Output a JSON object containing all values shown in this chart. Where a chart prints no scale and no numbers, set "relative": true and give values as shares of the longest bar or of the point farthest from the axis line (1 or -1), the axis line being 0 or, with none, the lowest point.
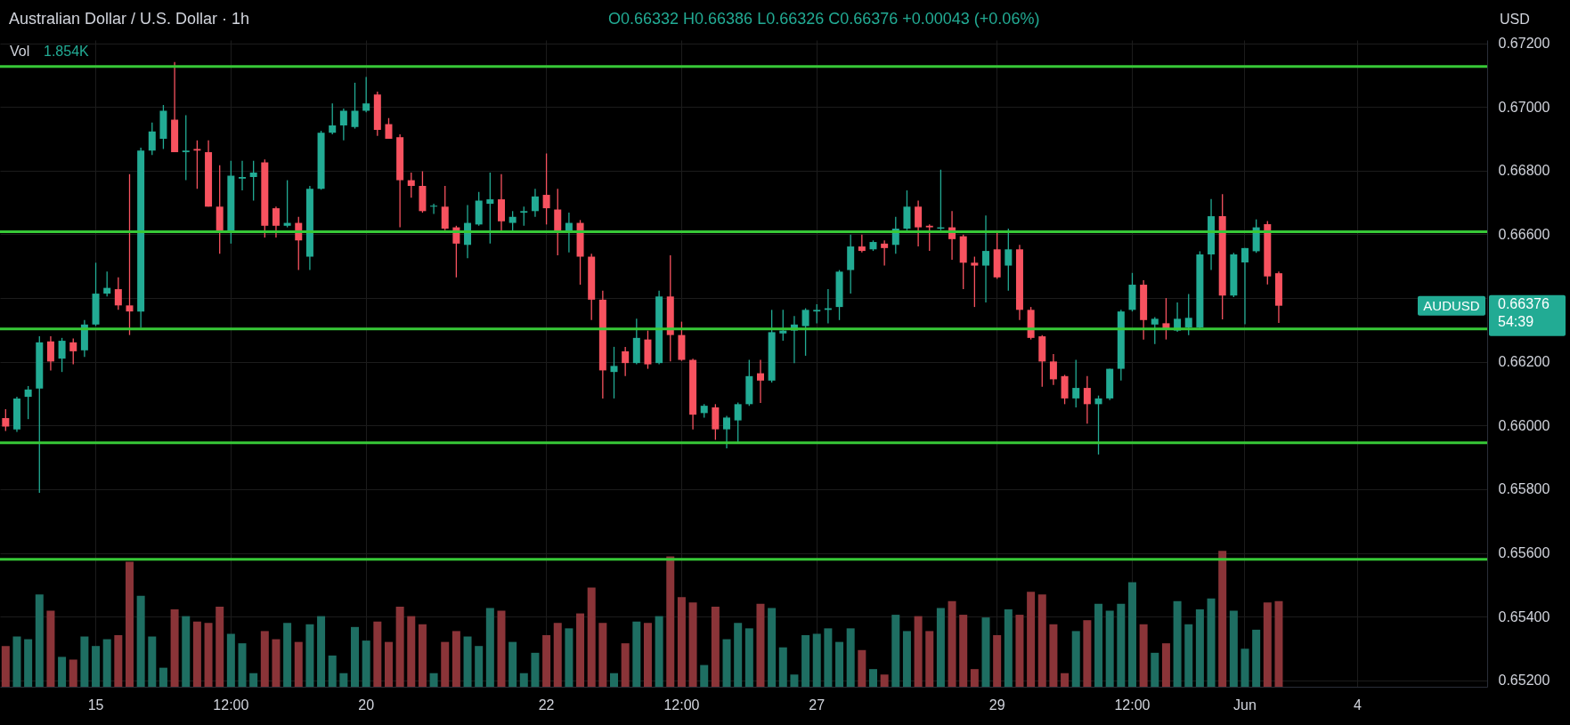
{
  "chart_data": [
    {
      "type": "candlestick",
      "title": "Australian Dollar / U.S. Dollar · 1h",
      "subtitle": "O0.66332 H0.66386 L0.66326 C0.66376 +0.00043 (+0.06%)",
      "categories": [
        null,
        null,
        null,
        null,
        null,
        null,
        null,
        null,
        "15",
        null,
        null,
        null,
        null,
        null,
        null,
        null,
        null,
        null,
        null,
        null,
        "12:00",
        null,
        null,
        null,
        null,
        null,
        null,
        null,
        null,
        null,
        null,
        null,
        "20",
        null,
        null,
        null,
        null,
        null,
        null,
        null,
        null,
        null,
        null,
        null,
        null,
        null,
        null,
        null,
        "22",
        null,
        null,
        null,
        null,
        null,
        null,
        null,
        null,
        null,
        null,
        null,
        "12:00",
        null,
        null,
        null,
        null,
        null,
        null,
        null,
        null,
        null,
        null,
        null,
        "27",
        null,
        null,
        null,
        null,
        null,
        null,
        null,
        null,
        null,
        null,
        null,
        null,
        null,
        null,
        null,
        "29",
        null,
        null,
        null,
        null,
        null,
        null,
        null,
        null,
        null,
        null,
        null,
        "12:00",
        null,
        null,
        null,
        null,
        null,
        null,
        null,
        null,
        null,
        "Jun",
        null,
        null,
        null,
        null,
        null,
        null,
        null,
        null,
        null,
        "4",
        null,
        null,
        null,
        null,
        null,
        null,
        null,
        null,
        null,
        null,
        null
      ],
      "ohlc": [
        [
          0.66023,
          0.66051,
          0.65983,
          0.65997
        ],
        [
          0.65988,
          0.6609,
          0.6598,
          0.66085
        ],
        [
          0.6609,
          0.66124,
          0.6602,
          0.66113
        ],
        [
          0.66116,
          0.6628,
          0.65789,
          0.66261
        ],
        [
          0.66264,
          0.6628,
          0.66173,
          0.66201
        ],
        [
          0.6621,
          0.66275,
          0.66168,
          0.66266
        ],
        [
          0.66261,
          0.66273,
          0.66192,
          0.66233
        ],
        [
          0.66236,
          0.66331,
          0.66215,
          0.66317
        ],
        [
          0.66317,
          0.66511,
          0.66312,
          0.66414
        ],
        [
          0.66414,
          0.66483,
          0.66405,
          0.66432
        ],
        [
          0.66428,
          0.66465,
          0.66363,
          0.66377
        ],
        [
          0.66377,
          0.66789,
          0.66284,
          0.66358
        ],
        [
          0.66358,
          0.66872,
          0.66307,
          0.66863
        ],
        [
          0.66863,
          0.66951,
          0.66849,
          0.66923
        ],
        [
          0.669,
          0.67006,
          0.66868,
          0.66988
        ],
        [
          0.6696,
          0.67141,
          0.66858,
          0.66858
        ],
        [
          0.66858,
          0.66974,
          0.6677,
          0.66863
        ],
        [
          0.66868,
          0.66895,
          0.66743,
          0.66863
        ],
        [
          0.66858,
          0.66895,
          0.66687,
          0.66687
        ],
        [
          0.66687,
          0.66817,
          0.66539,
          0.66604
        ],
        [
          0.66608,
          0.66831,
          0.66571,
          0.66784
        ],
        [
          0.66775,
          0.66831,
          0.66738,
          0.6678
        ],
        [
          0.6678,
          0.66831,
          0.66706,
          0.66794
        ],
        [
          0.66826,
          0.66835,
          0.6659,
          0.66627
        ],
        [
          0.66682,
          0.66687,
          0.6659,
          0.66627
        ],
        [
          0.66627,
          0.6677,
          0.66622,
          0.66636
        ],
        [
          0.66636,
          0.66655,
          0.66488,
          0.66581
        ],
        [
          0.6653,
          0.66752,
          0.66488,
          0.66743
        ],
        [
          0.66743,
          0.66925,
          0.6674,
          0.66919
        ],
        [
          0.66919,
          0.67011,
          0.66914,
          0.66942
        ],
        [
          0.66942,
          0.66995,
          0.66895,
          0.66988
        ],
        [
          0.66937,
          0.67076,
          0.66932,
          0.66988
        ],
        [
          0.66988,
          0.67094,
          0.66983,
          0.67011
        ],
        [
          0.67039,
          0.67048,
          0.66909,
          0.66928
        ],
        [
          0.66946,
          0.66965,
          0.669,
          0.669
        ],
        [
          0.66905,
          0.66914,
          0.66622,
          0.6677
        ],
        [
          0.6677,
          0.66794,
          0.66715,
          0.66752
        ],
        [
          0.66752,
          0.66798,
          0.66668,
          0.66673
        ],
        [
          0.66687,
          0.66696,
          0.66664,
          0.6669
        ],
        [
          0.66687,
          0.66752,
          0.66613,
          0.66618
        ],
        [
          0.66622,
          0.66627,
          0.66465,
          0.66571
        ],
        [
          0.66567,
          0.66692,
          0.66525,
          0.66636
        ],
        [
          0.66631,
          0.66733,
          0.66627,
          0.66706
        ],
        [
          0.66696,
          0.66794,
          0.66571,
          0.6671
        ],
        [
          0.6671,
          0.66789,
          0.66608,
          0.66641
        ],
        [
          0.66636,
          0.66673,
          0.66608,
          0.66655
        ],
        [
          0.66668,
          0.66687,
          0.66627,
          0.66673
        ],
        [
          0.66673,
          0.66743,
          0.66655,
          0.66719
        ],
        [
          0.66724,
          0.66854,
          0.66631,
          0.66682
        ],
        [
          0.66678,
          0.66743,
          0.66534,
          0.66608
        ],
        [
          0.66608,
          0.66668,
          0.66543,
          0.66636
        ],
        [
          0.66636,
          0.66645,
          0.66442,
          0.6653
        ],
        [
          0.6653,
          0.66539,
          0.66331,
          0.66395
        ],
        [
          0.66395,
          0.66423,
          0.66085,
          0.66173
        ],
        [
          0.66168,
          0.66247,
          0.66085,
          0.66187
        ],
        [
          0.66233,
          0.66247,
          0.66155,
          0.66196
        ],
        [
          0.66196,
          0.66335,
          0.66192,
          0.66275
        ],
        [
          0.6627,
          0.66298,
          0.66178,
          0.66192
        ],
        [
          0.66196,
          0.66423,
          0.66192,
          0.66405
        ],
        [
          0.66405,
          0.66534,
          0.66201,
          0.66284
        ],
        [
          0.66284,
          0.66326,
          0.66203,
          0.66206
        ],
        [
          0.66206,
          0.6621,
          0.65988,
          0.66034
        ],
        [
          0.66039,
          0.66067,
          0.66025,
          0.66062
        ],
        [
          0.66057,
          0.66067,
          0.65955,
          0.65988
        ],
        [
          0.65988,
          0.6603,
          0.65928,
          0.66025
        ],
        [
          0.66016,
          0.66072,
          0.65946,
          0.66067
        ],
        [
          0.66067,
          0.66206,
          0.66062,
          0.66155
        ],
        [
          0.66164,
          0.66206,
          0.66071,
          0.66141
        ],
        [
          0.66141,
          0.66363,
          0.66135,
          0.66293
        ],
        [
          0.66289,
          0.66363,
          0.66266,
          0.66298
        ],
        [
          0.66298,
          0.66344,
          0.66196,
          0.66317
        ],
        [
          0.66312,
          0.66368,
          0.66219,
          0.66363
        ],
        [
          0.66358,
          0.66381,
          0.66321,
          0.66363
        ],
        [
          0.66363,
          0.66428,
          0.66321,
          0.66368
        ],
        [
          0.66372,
          0.66488,
          0.66331,
          0.66483
        ],
        [
          0.66488,
          0.66599,
          0.66414,
          0.66562
        ],
        [
          0.66562,
          0.66599,
          0.66543,
          0.66548
        ],
        [
          0.66553,
          0.66581,
          0.66548,
          0.66576
        ],
        [
          0.66571,
          0.66581,
          0.66502,
          0.66557
        ],
        [
          0.66567,
          0.66655,
          0.66539,
          0.66618
        ],
        [
          0.66618,
          0.66738,
          0.66613,
          0.66687
        ],
        [
          0.66687,
          0.66706,
          0.66562,
          0.66622
        ],
        [
          0.66627,
          0.66631,
          0.66548,
          0.66622
        ],
        [
          0.66618,
          0.66803,
          0.66613,
          0.66622
        ],
        [
          0.66622,
          0.66673,
          0.6652,
          0.66585
        ],
        [
          0.66594,
          0.66599,
          0.66428,
          0.66511
        ],
        [
          0.66511,
          0.6653,
          0.66372,
          0.66502
        ],
        [
          0.66502,
          0.66659,
          0.66386,
          0.66548
        ],
        [
          0.66553,
          0.66604,
          0.6646,
          0.66465
        ],
        [
          0.66502,
          0.66618,
          0.66423,
          0.66553
        ],
        [
          0.66553,
          0.66567,
          0.66331,
          0.66363
        ],
        [
          0.66363,
          0.66372,
          0.6627,
          0.66275
        ],
        [
          0.6628,
          0.66284,
          0.66122,
          0.66201
        ],
        [
          0.66201,
          0.66224,
          0.66127,
          0.66145
        ],
        [
          0.66155,
          0.66159,
          0.66067,
          0.66085
        ],
        [
          0.66085,
          0.66206,
          0.66057,
          0.66118
        ],
        [
          0.66118,
          0.66155,
          0.66006,
          0.66067
        ],
        [
          0.66067,
          0.66094,
          0.65909,
          0.66085
        ],
        [
          0.66085,
          0.66178,
          0.6608,
          0.66178
        ],
        [
          0.66178,
          0.66363,
          0.66141,
          0.66358
        ],
        [
          0.66363,
          0.66479,
          0.66358,
          0.66442
        ],
        [
          0.66442,
          0.66456,
          0.6627,
          0.66331
        ],
        [
          0.66317,
          0.6634,
          0.66256,
          0.66335
        ],
        [
          0.66321,
          0.664,
          0.6627,
          0.66303
        ],
        [
          0.66298,
          0.66386,
          0.66294,
          0.66335
        ],
        [
          0.66308,
          0.66413,
          0.66284,
          0.66338
        ],
        [
          0.66308,
          0.66547,
          0.66303,
          0.66537
        ],
        [
          0.66537,
          0.66711,
          0.66488,
          0.66657
        ],
        [
          0.66657,
          0.66726,
          0.66333,
          0.66408
        ],
        [
          0.66408,
          0.66542,
          0.66403,
          0.66537
        ],
        [
          0.66512,
          0.66557,
          0.66318,
          0.66557
        ],
        [
          0.66547,
          0.66647,
          0.66542,
          0.66622
        ],
        [
          0.66632,
          0.66642,
          0.66443,
          0.66468
        ],
        [
          0.66478,
          0.66483,
          0.66322,
          0.66376
        ],
        null,
        null,
        null,
        null,
        null,
        null,
        null,
        null,
        null,
        null,
        null,
        null,
        null,
        null,
        null,
        null,
        null,
        null
      ],
      "colors": [
        "#f7525f",
        "#22ab94",
        "#22ab94",
        "#22ab94",
        "#f7525f",
        "#22ab94",
        "#f7525f",
        "#22ab94",
        "#22ab94",
        "#22ab94",
        "#f7525f",
        "#f7525f",
        "#22ab94",
        "#22ab94",
        "#22ab94",
        "#f7525f",
        "#22ab94",
        "#f7525f",
        "#f7525f",
        "#f7525f",
        "#22ab94",
        "#22ab94",
        "#22ab94",
        "#f7525f",
        "#f7525f",
        "#22ab94",
        "#f7525f",
        "#22ab94",
        "#22ab94",
        "#22ab94",
        "#22ab94",
        "#22ab94",
        "#22ab94",
        "#f7525f",
        "#f7525f",
        "#f7525f",
        "#f7525f",
        "#f7525f",
        "#22ab94",
        "#f7525f",
        "#f7525f",
        "#22ab94",
        "#22ab94",
        "#22ab94",
        "#f7525f",
        "#22ab94",
        "#22ab94",
        "#22ab94",
        "#f7525f",
        "#f7525f",
        "#22ab94",
        "#f7525f",
        "#f7525f",
        "#f7525f",
        "#22ab94",
        "#f7525f",
        "#22ab94",
        "#f7525f",
        "#22ab94",
        "#f7525f",
        "#f7525f",
        "#f7525f",
        "#22ab94",
        "#f7525f",
        "#22ab94",
        "#22ab94",
        "#22ab94",
        "#f7525f",
        "#22ab94",
        "#22ab94",
        "#22ab94",
        "#22ab94",
        "#22ab94",
        "#22ab94",
        "#22ab94",
        "#22ab94",
        "#f7525f",
        "#22ab94",
        "#f7525f",
        "#22ab94",
        "#22ab94",
        "#f7525f",
        "#f7525f",
        "#22ab94",
        "#f7525f",
        "#f7525f",
        "#f7525f",
        "#22ab94",
        "#f7525f",
        "#22ab94",
        "#f7525f",
        "#f7525f",
        "#f7525f",
        "#f7525f",
        "#f7525f",
        "#22ab94",
        "#f7525f",
        "#22ab94",
        "#22ab94",
        "#22ab94",
        "#22ab94",
        "#f7525f",
        "#22ab94",
        "#f7525f",
        "#22ab94",
        "#22ab94",
        "#22ab94",
        "#22ab94",
        "#f7525f",
        "#22ab94",
        "#22ab94",
        "#22ab94",
        "#f7525f",
        "#f7525f",
        null,
        null,
        null,
        null,
        null,
        null,
        null,
        null,
        null,
        null,
        null,
        null,
        null,
        null,
        null,
        null,
        null,
        null
      ],
      "ylim": [
        0.6518,
        0.6721
      ],
      "yticks": [
        {
          "value": 0.652,
          "label": "0.65200"
        },
        {
          "value": 0.654,
          "label": "0.65400"
        },
        {
          "value": 0.656,
          "label": "0.65600"
        },
        {
          "value": 0.658,
          "label": "0.65800"
        },
        {
          "value": 0.66,
          "label": "0.66000"
        },
        {
          "value": 0.662,
          "label": "0.66200"
        },
        {
          "value": 0.664,
          "label": null
        },
        {
          "value": 0.666,
          "label": "0.66600"
        },
        {
          "value": 0.668,
          "label": "0.66800"
        },
        {
          "value": 0.67,
          "label": "0.67000"
        },
        {
          "value": 0.672,
          "label": "0.67200"
        }
      ],
      "grid": true,
      "ref_lines": [
        {
          "axis": "y",
          "value": 0.67127,
          "color": "#37c837"
        },
        {
          "axis": "y",
          "value": 0.66608,
          "color": "#37c837"
        },
        {
          "axis": "y",
          "value": 0.66303,
          "color": "#37c837"
        },
        {
          "axis": "y",
          "value": 0.65946,
          "color": "#37c837"
        },
        {
          "axis": "y",
          "value": 0.6558,
          "color": "#37c837"
        }
      ],
      "annotations": [
        "AUDUSD",
        "0.66376\n54:39",
        "USD"
      ]
    },
    {
      "type": "bar",
      "relative": true,
      "title": "Vol",
      "tick_labels": false,
      "categories": [
        null,
        null,
        null,
        null,
        null,
        null,
        null,
        null,
        null,
        null,
        null,
        null,
        null,
        null,
        null,
        null,
        null,
        null,
        null,
        null,
        null,
        null,
        null,
        null,
        null,
        null,
        null,
        null,
        null,
        null,
        null,
        null,
        null,
        null,
        null,
        null,
        null,
        null,
        null,
        null,
        null,
        null,
        null,
        null,
        null,
        null,
        null,
        null,
        null,
        null,
        null,
        null,
        null,
        null,
        null,
        null,
        null,
        null,
        null,
        null,
        null,
        null,
        null,
        null,
        null,
        null,
        null,
        null,
        null,
        null,
        null,
        null,
        null,
        null,
        null,
        null,
        null,
        null,
        null,
        null,
        null,
        null,
        null,
        null,
        null,
        null,
        null,
        null,
        null,
        null,
        null,
        null,
        null,
        null,
        null,
        null,
        null,
        null,
        null,
        null,
        null,
        null,
        null,
        null,
        null,
        null,
        null,
        null,
        null,
        null,
        null,
        null,
        null,
        null,
        null,
        null,
        null,
        null,
        null,
        null,
        null,
        null,
        null,
        null,
        null,
        null,
        null,
        null,
        null,
        null,
        null,
        null
      ],
      "values": [
        0.3,
        0.37,
        0.35,
        0.68,
        0.56,
        0.22,
        0.2,
        0.37,
        0.3,
        0.35,
        0.38,
        0.92,
        0.67,
        0.37,
        0.14,
        0.57,
        0.52,
        0.48,
        0.47,
        0.59,
        0.39,
        0.32,
        0.1,
        0.41,
        0.35,
        0.47,
        0.33,
        0.46,
        0.52,
        0.23,
        0.1,
        0.44,
        0.34,
        0.48,
        0.33,
        0.59,
        0.52,
        0.46,
        0.1,
        0.33,
        0.41,
        0.37,
        0.3,
        0.58,
        0.56,
        0.33,
        0.1,
        0.25,
        0.38,
        0.47,
        0.43,
        0.54,
        0.73,
        0.47,
        0.1,
        0.32,
        0.48,
        0.47,
        0.52,
        0.96,
        0.66,
        0.62,
        0.16,
        0.59,
        0.35,
        0.47,
        0.43,
        0.61,
        0.58,
        0.29,
        0.09,
        0.38,
        0.39,
        0.43,
        0.33,
        0.43,
        0.27,
        0.13,
        0.09,
        0.53,
        0.41,
        0.52,
        0.41,
        0.58,
        0.63,
        0.53,
        0.13,
        0.51,
        0.38,
        0.57,
        0.53,
        0.7,
        0.68,
        0.46,
        0.1,
        0.41,
        0.49,
        0.61,
        0.56,
        0.61,
        0.77,
        0.46,
        0.25,
        0.32,
        0.63,
        0.46,
        0.57,
        0.65,
        1,
        0.56,
        0.28,
        0.42,
        0.62,
        0.63,
        null,
        null,
        null,
        null,
        null,
        null,
        null,
        null,
        null,
        null,
        null,
        null,
        null,
        null,
        null,
        null,
        null,
        null
      ],
      "colors": [
        "#8a3438",
        "#1e6e62",
        "#1e6e62",
        "#1e6e62",
        "#8a3438",
        "#1e6e62",
        "#8a3438",
        "#1e6e62",
        "#1e6e62",
        "#1e6e62",
        "#8a3438",
        "#8a3438",
        "#1e6e62",
        "#1e6e62",
        "#1e6e62",
        "#8a3438",
        "#1e6e62",
        "#8a3438",
        "#8a3438",
        "#8a3438",
        "#1e6e62",
        "#1e6e62",
        "#1e6e62",
        "#8a3438",
        "#8a3438",
        "#1e6e62",
        "#8a3438",
        "#1e6e62",
        "#1e6e62",
        "#1e6e62",
        "#1e6e62",
        "#1e6e62",
        "#1e6e62",
        "#8a3438",
        "#8a3438",
        "#8a3438",
        "#8a3438",
        "#8a3438",
        "#1e6e62",
        "#8a3438",
        "#8a3438",
        "#1e6e62",
        "#1e6e62",
        "#1e6e62",
        "#8a3438",
        "#1e6e62",
        "#1e6e62",
        "#1e6e62",
        "#8a3438",
        "#8a3438",
        "#1e6e62",
        "#8a3438",
        "#8a3438",
        "#8a3438",
        "#1e6e62",
        "#8a3438",
        "#1e6e62",
        "#8a3438",
        "#1e6e62",
        "#8a3438",
        "#8a3438",
        "#8a3438",
        "#1e6e62",
        "#8a3438",
        "#1e6e62",
        "#1e6e62",
        "#1e6e62",
        "#8a3438",
        "#1e6e62",
        "#1e6e62",
        "#1e6e62",
        "#1e6e62",
        "#1e6e62",
        "#1e6e62",
        "#1e6e62",
        "#1e6e62",
        "#8a3438",
        "#1e6e62",
        "#8a3438",
        "#1e6e62",
        "#1e6e62",
        "#8a3438",
        "#8a3438",
        "#1e6e62",
        "#8a3438",
        "#8a3438",
        "#8a3438",
        "#1e6e62",
        "#8a3438",
        "#1e6e62",
        "#8a3438",
        "#8a3438",
        "#8a3438",
        "#8a3438",
        "#8a3438",
        "#1e6e62",
        "#8a3438",
        "#1e6e62",
        "#1e6e62",
        "#1e6e62",
        "#1e6e62",
        "#8a3438",
        "#1e6e62",
        "#8a3438",
        "#1e6e62",
        "#1e6e62",
        "#1e6e62",
        "#1e6e62",
        "#8a3438",
        "#1e6e62",
        "#1e6e62",
        "#1e6e62",
        "#8a3438",
        "#8a3438",
        null,
        null,
        null,
        null,
        null,
        null,
        null,
        null,
        null,
        null,
        null,
        null,
        null,
        null,
        null,
        null,
        null,
        null
      ],
      "annotations": [
        "1.854K"
      ]
    }
  ]
}
